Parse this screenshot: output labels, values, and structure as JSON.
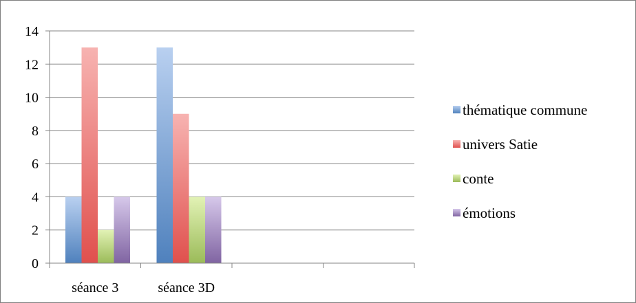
{
  "chart_data": {
    "type": "bar",
    "categories": [
      "séance 3",
      "séance 3D",
      "",
      ""
    ],
    "series": [
      {
        "name": "thématique commune",
        "values": [
          4,
          13,
          null,
          null
        ],
        "color": "#4f81bd",
        "light": "#b9d0f0"
      },
      {
        "name": "univers Satie",
        "values": [
          13,
          9,
          null,
          null
        ],
        "color": "#e0504d",
        "light": "#f7b3b1"
      },
      {
        "name": "conte",
        "values": [
          2,
          4,
          null,
          null
        ],
        "color": "#9bbb59",
        "light": "#e2f2b5"
      },
      {
        "name": "émotions",
        "values": [
          4,
          4,
          null,
          null
        ],
        "color": "#8064a2",
        "light": "#d6c8ea"
      }
    ],
    "y_ticks": [
      "0",
      "2",
      "4",
      "6",
      "8",
      "10",
      "12",
      "14"
    ],
    "ylim": [
      0,
      14
    ],
    "grid": true,
    "legend_position": "right",
    "title": "",
    "xlabel": "",
    "ylabel": ""
  }
}
